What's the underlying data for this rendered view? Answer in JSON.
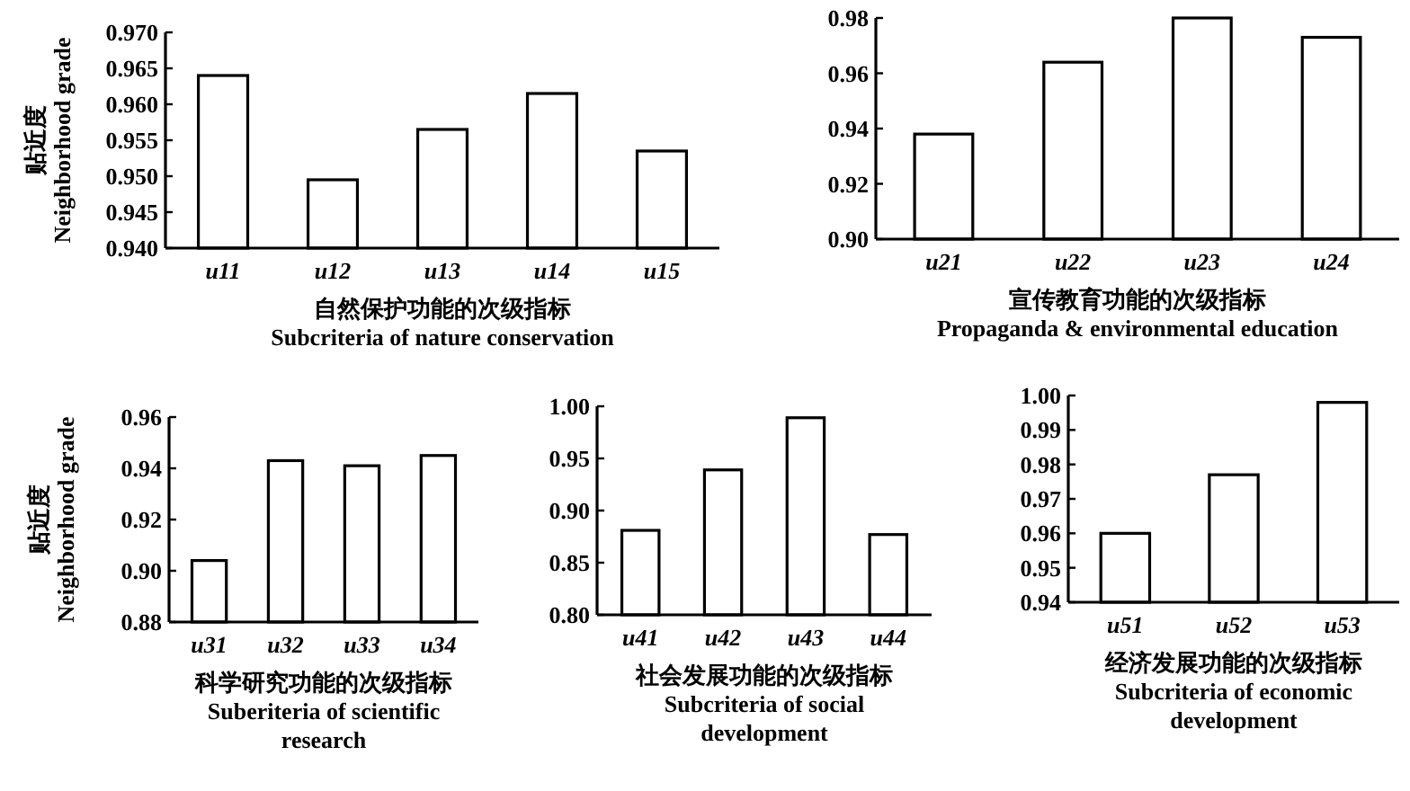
{
  "chart_data": [
    {
      "type": "bar",
      "ylabel": "贴近度\nNeighborhood grade",
      "xlabel": "自然保护功能的次级指标\nSubcriteria of nature conservation",
      "categories": [
        "u11",
        "u12",
        "u13",
        "u14",
        "u15"
      ],
      "values": [
        0.964,
        0.9495,
        0.9565,
        0.9615,
        0.9535
      ],
      "color": "#ffffff",
      "ylim": [
        0.94,
        0.97
      ],
      "yticks": [
        {
          "value": 0.94,
          "label": "0.940"
        },
        {
          "value": 0.945,
          "label": "0.945"
        },
        {
          "value": 0.95,
          "label": "0.950"
        },
        {
          "value": 0.955,
          "label": "0.955"
        },
        {
          "value": 0.96,
          "label": "0.960"
        },
        {
          "value": 0.965,
          "label": "0.965"
        },
        {
          "value": 0.97,
          "label": "0.970"
        }
      ]
    },
    {
      "type": "bar",
      "xlabel": "宣传教育功能的次级指标\nPropaganda & environmental education",
      "categories": [
        "u21",
        "u22",
        "u23",
        "u24"
      ],
      "values": [
        0.938,
        0.964,
        0.98,
        0.973
      ],
      "color": "#ffffff",
      "ylim": [
        0.9,
        0.98
      ],
      "yticks": [
        {
          "value": 0.9,
          "label": "0.90"
        },
        0.92,
        0.94,
        0.96,
        0.98
      ]
    },
    {
      "type": "bar",
      "ylabel": "贴近度\nNeighborhood grade",
      "xlabel": "科学研究功能的次级指标\nSuberiteria of scientific\nresearch",
      "categories": [
        "u31",
        "u32",
        "u33",
        "u34"
      ],
      "values": [
        0.904,
        0.943,
        0.941,
        0.945
      ],
      "color": "#ffffff",
      "ylim": [
        0.88,
        0.96
      ],
      "yticks": [
        0.88,
        {
          "value": 0.9,
          "label": "0.90"
        },
        0.92,
        0.94,
        0.96
      ]
    },
    {
      "type": "bar",
      "xlabel": "社会发展功能的次级指标\nSubcriteria of social\ndevelopment",
      "categories": [
        "u41",
        "u42",
        "u43",
        "u44"
      ],
      "values": [
        0.881,
        0.939,
        0.989,
        0.877
      ],
      "color": "#ffffff",
      "ylim": [
        0.8,
        1.0
      ],
      "yticks": [
        {
          "value": 0.8,
          "label": "0.80"
        },
        0.85,
        {
          "value": 0.9,
          "label": "0.90"
        },
        0.95,
        {
          "value": 1.0,
          "label": "1.00"
        }
      ]
    },
    {
      "type": "bar",
      "xlabel": "经济发展功能的次级指标\nSubcriteria of economic\ndevelopment",
      "categories": [
        "u51",
        "u52",
        "u53"
      ],
      "values": [
        0.96,
        0.977,
        0.998
      ],
      "color": "#ffffff",
      "ylim": [
        0.94,
        1.0
      ],
      "yticks": [
        0.94,
        0.95,
        0.96,
        0.97,
        0.98,
        0.99,
        {
          "value": 1.0,
          "label": "1.00"
        }
      ]
    }
  ]
}
